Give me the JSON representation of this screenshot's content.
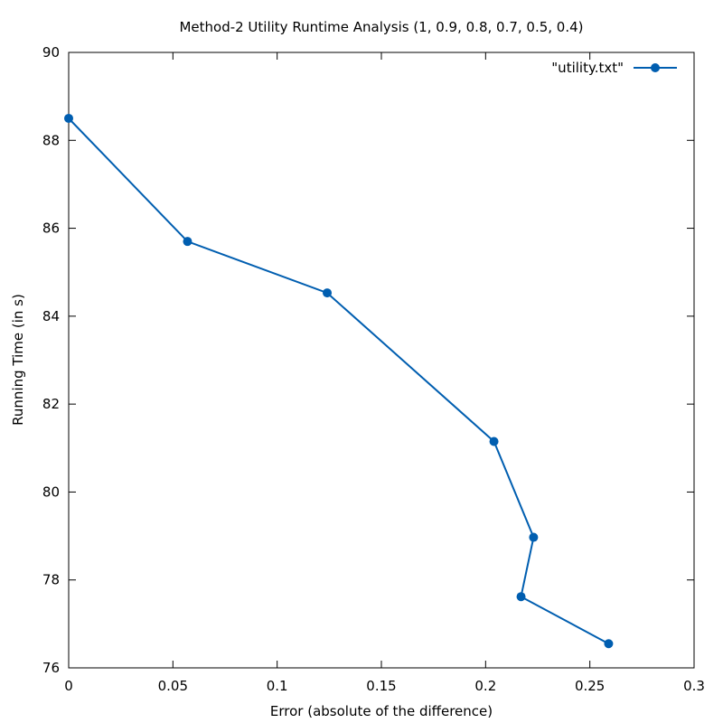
{
  "chart_data": {
    "type": "line",
    "title": "Method-2 Utility Runtime Analysis (1, 0.9, 0.8, 0.7, 0.5, 0.4)",
    "xlabel": "Error (absolute of the difference)",
    "ylabel": "Running Time (in s)",
    "xlim": [
      0,
      0.3
    ],
    "ylim": [
      76,
      90
    ],
    "xticks": [
      "0",
      "0.05",
      "0.1",
      "0.15",
      "0.2",
      "0.25",
      "0.3"
    ],
    "xtick_values": [
      0,
      0.05,
      0.1,
      0.15,
      0.2,
      0.25,
      0.3
    ],
    "yticks": [
      "76",
      "78",
      "80",
      "82",
      "84",
      "86",
      "88",
      "90"
    ],
    "ytick_values": [
      76,
      78,
      80,
      82,
      84,
      86,
      88,
      90
    ],
    "grid": false,
    "legend_position": "top-right",
    "series": [
      {
        "name": "\"utility.txt\"",
        "color": "#005eb0",
        "marker": "circle",
        "x": [
          0.0,
          0.057,
          0.124,
          0.204,
          0.223,
          0.217,
          0.259
        ],
        "y": [
          88.5,
          85.7,
          84.53,
          81.15,
          78.97,
          77.62,
          76.55
        ]
      }
    ]
  }
}
